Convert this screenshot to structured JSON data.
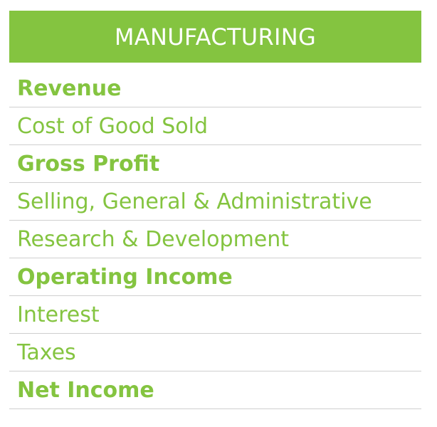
{
  "header": {
    "title": "MANUFACTURING"
  },
  "rows": [
    {
      "label": "Revenue",
      "bold": true
    },
    {
      "label": "Cost of Good Sold",
      "bold": false
    },
    {
      "label": "Gross Profit",
      "bold": true
    },
    {
      "label": "Selling, General & Administrative",
      "bold": false
    },
    {
      "label": "Research & Development",
      "bold": false
    },
    {
      "label": "Operating Income",
      "bold": true
    },
    {
      "label": "Interest",
      "bold": false
    },
    {
      "label": "Taxes",
      "bold": false
    },
    {
      "label": "Net Income",
      "bold": true
    }
  ],
  "colors": {
    "accent": "#84c440",
    "divider": "#cfcfcf",
    "header_text": "#ffffff"
  }
}
